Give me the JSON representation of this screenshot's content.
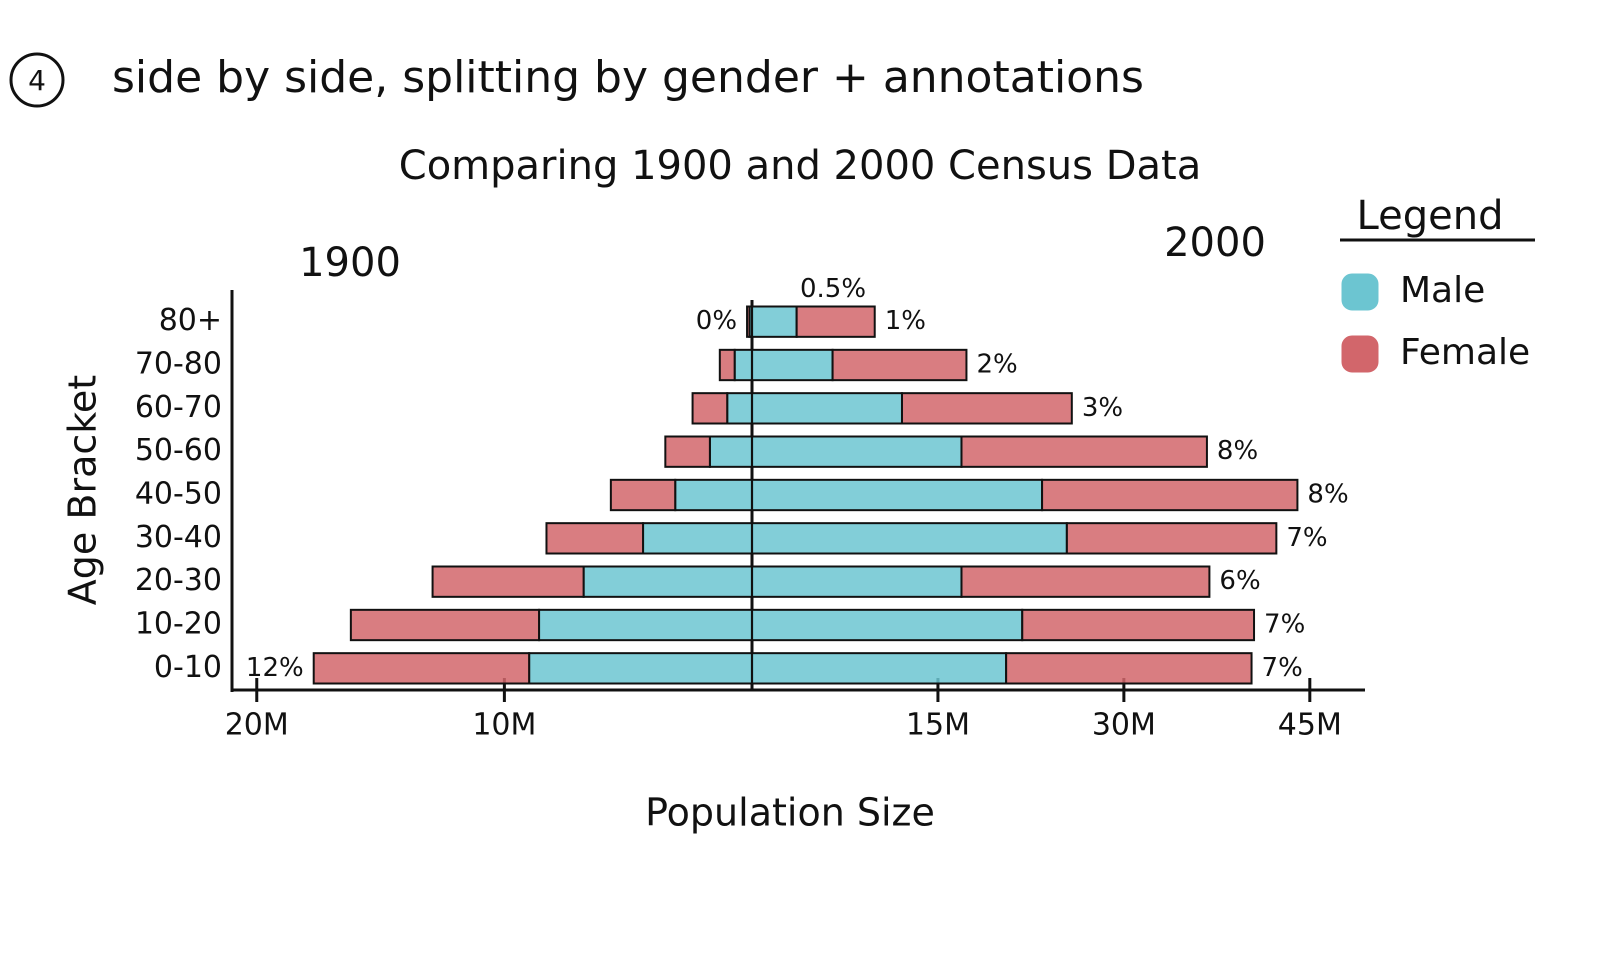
{
  "chart_data": {
    "type": "pyramid",
    "number": "4",
    "title": "side by side, splitting by gender + annotations",
    "subtitle": "Comparing 1900 and 2000 Census Data",
    "y_label": "Age Bracket",
    "x_label": "Population Size",
    "legend_title": "Legend",
    "categories": [
      "0-10",
      "10-20",
      "20-30",
      "30-40",
      "40-50",
      "50-60",
      "60-70",
      "70-80",
      "80+"
    ],
    "panels": [
      {
        "name": "1900",
        "side": "left",
        "xlim": [
          0,
          21
        ],
        "xticks": [
          {
            "value": 10,
            "label": "10M"
          },
          {
            "value": 20,
            "label": "20M"
          }
        ],
        "series": [
          {
            "name": "Male",
            "color": "#6cc5d1",
            "values": [
              9.0,
              8.6,
              6.8,
              4.4,
              3.1,
              1.7,
              1.0,
              0.7,
              0.1
            ]
          },
          {
            "name": "Female",
            "color": "#d2666b",
            "values": [
              8.7,
              7.6,
              6.1,
              3.9,
              2.6,
              1.8,
              1.4,
              0.6,
              0.1
            ]
          }
        ],
        "percent_labels": [
          "12%",
          null,
          null,
          null,
          null,
          null,
          null,
          null,
          "0%"
        ]
      },
      {
        "name": "2000",
        "side": "right",
        "xlim": [
          0,
          48
        ],
        "xticks": [
          {
            "value": 15,
            "label": "15M"
          },
          {
            "value": 30,
            "label": "30M"
          },
          {
            "value": 45,
            "label": "45M"
          }
        ],
        "series": [
          {
            "name": "Male",
            "color": "#6cc5d1",
            "values": [
              20.5,
              21.8,
              16.9,
              25.4,
              23.4,
              16.9,
              12.1,
              6.5,
              3.6
            ]
          },
          {
            "name": "Female",
            "color": "#d2666b",
            "values": [
              19.8,
              18.7,
              20.0,
              16.9,
              20.6,
              19.8,
              13.7,
              10.8,
              6.3
            ]
          }
        ],
        "percent_labels": [
          "7%",
          "7%",
          "6%",
          "7%",
          "8%",
          "8%",
          "3%",
          "2%",
          "1%"
        ]
      }
    ],
    "annotations": [
      "0.5%"
    ]
  }
}
